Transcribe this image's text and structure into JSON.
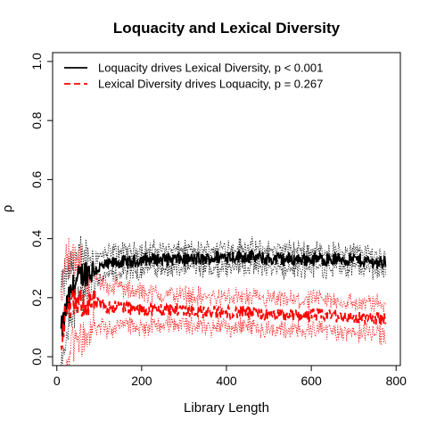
{
  "chart_data": {
    "type": "line",
    "title": "Loquacity and Lexical Diversity",
    "xlabel": "Library Length",
    "ylabel": "ρ",
    "xlim": [
      -10,
      810
    ],
    "ylim": [
      -0.03,
      1.03
    ],
    "x_ticks": [
      0,
      200,
      400,
      600,
      800
    ],
    "y_ticks": [
      0.0,
      0.2,
      0.4,
      0.6,
      0.8,
      1.0
    ],
    "x_tick_labels": [
      "0",
      "200",
      "400",
      "600",
      "800"
    ],
    "y_tick_labels": [
      "0.0",
      "0.2",
      "0.4",
      "0.6",
      "0.8",
      "1.0"
    ],
    "legend_position": "top-left",
    "grid": false,
    "series": [
      {
        "name": "Loquacity drives Lexical Diversity, p < 0.001",
        "color": "#000000",
        "style": "solid",
        "x": [
          10,
          20,
          30,
          40,
          50,
          60,
          70,
          80,
          100,
          120,
          140,
          160,
          180,
          200,
          250,
          300,
          350,
          400,
          450,
          500,
          550,
          600,
          650,
          700,
          750,
          775
        ],
        "y": [
          0.08,
          0.15,
          0.2,
          0.24,
          0.26,
          0.28,
          0.29,
          0.29,
          0.3,
          0.31,
          0.32,
          0.32,
          0.32,
          0.33,
          0.33,
          0.33,
          0.33,
          0.34,
          0.34,
          0.33,
          0.33,
          0.33,
          0.33,
          0.33,
          0.32,
          0.32
        ],
        "band_halfwidth": [
          0.14,
          0.12,
          0.1,
          0.08,
          0.07,
          0.06,
          0.05,
          0.05,
          0.04,
          0.04,
          0.035,
          0.035,
          0.035,
          0.03,
          0.03,
          0.03,
          0.03,
          0.03,
          0.03,
          0.03,
          0.03,
          0.03,
          0.025,
          0.025,
          0.025,
          0.025
        ]
      },
      {
        "name": "Lexical Diversity drives Loquacity, p = 0.267",
        "color": "#ff0000",
        "style": "dashed",
        "x": [
          10,
          20,
          30,
          40,
          50,
          60,
          70,
          80,
          100,
          120,
          140,
          160,
          180,
          200,
          250,
          300,
          350,
          400,
          450,
          500,
          550,
          600,
          650,
          700,
          750,
          775
        ],
        "y": [
          0.05,
          0.14,
          0.17,
          0.18,
          0.18,
          0.18,
          0.18,
          0.18,
          0.18,
          0.17,
          0.17,
          0.17,
          0.16,
          0.16,
          0.16,
          0.16,
          0.15,
          0.15,
          0.15,
          0.14,
          0.14,
          0.14,
          0.14,
          0.13,
          0.13,
          0.13
        ],
        "band_halfwidth": [
          0.2,
          0.18,
          0.16,
          0.14,
          0.12,
          0.11,
          0.1,
          0.09,
          0.08,
          0.07,
          0.07,
          0.06,
          0.06,
          0.06,
          0.05,
          0.05,
          0.05,
          0.05,
          0.05,
          0.05,
          0.05,
          0.05,
          0.05,
          0.05,
          0.05,
          0.05
        ]
      }
    ]
  }
}
